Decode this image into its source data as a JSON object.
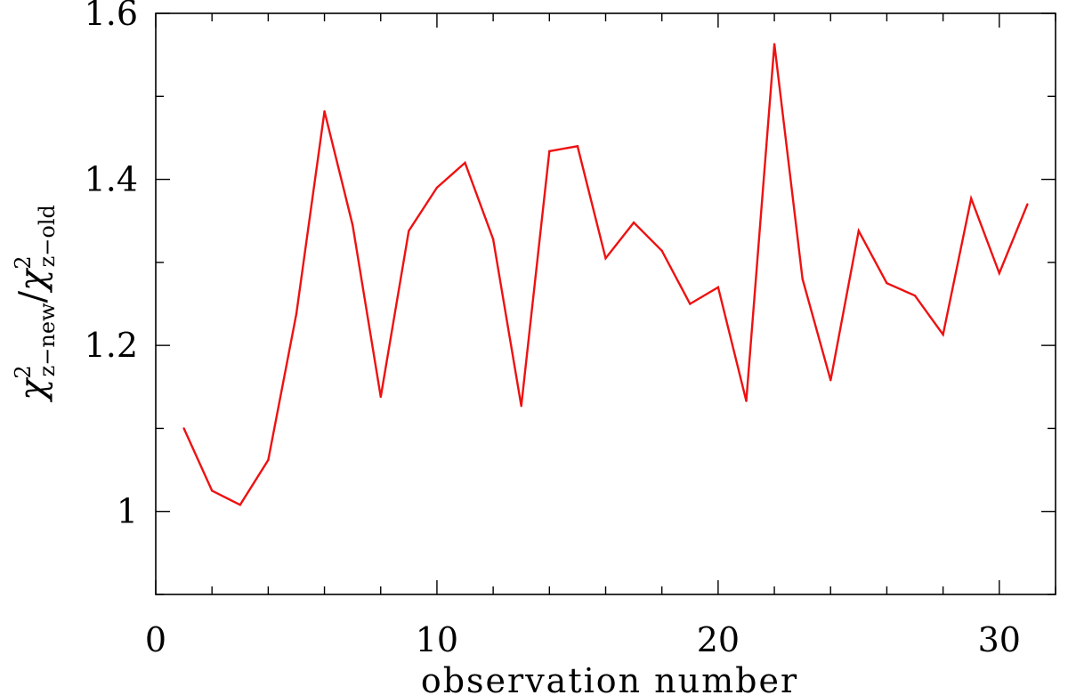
{
  "chart_data": {
    "type": "line",
    "title": "",
    "xlabel": "observation number",
    "ylabel": {
      "symbol": "χ",
      "sup": "2",
      "num_sub": "z−new",
      "slash": "/",
      "den_sub": "z−old"
    },
    "xlim": [
      0,
      32
    ],
    "ylim": [
      0.9,
      1.6
    ],
    "x_ticks_major": [
      0,
      10,
      20,
      30
    ],
    "x_tick_labels": [
      "0",
      "10",
      "20",
      "30"
    ],
    "x_tick_minor_step": 2,
    "y_ticks_major": [
      1.0,
      1.2,
      1.4,
      1.6
    ],
    "y_tick_labels": [
      "1",
      "1.2",
      "1.4",
      "1.6"
    ],
    "y_tick_minor_step": 0.1,
    "grid": false,
    "color": "#ee1111",
    "x": [
      1,
      2,
      3,
      4,
      5,
      6,
      7,
      8,
      9,
      10,
      11,
      12,
      13,
      14,
      15,
      16,
      17,
      18,
      19,
      20,
      21,
      22,
      23,
      24,
      25,
      26,
      27,
      28,
      29,
      30,
      31
    ],
    "y": [
      1.1,
      1.025,
      1.008,
      1.062,
      1.238,
      1.482,
      1.345,
      1.138,
      1.338,
      1.39,
      1.42,
      1.328,
      1.127,
      1.434,
      1.44,
      1.305,
      1.348,
      1.314,
      1.25,
      1.27,
      1.133,
      1.563,
      1.28,
      1.158,
      1.338,
      1.275,
      1.26,
      1.213,
      1.377,
      1.287,
      1.37
    ]
  }
}
